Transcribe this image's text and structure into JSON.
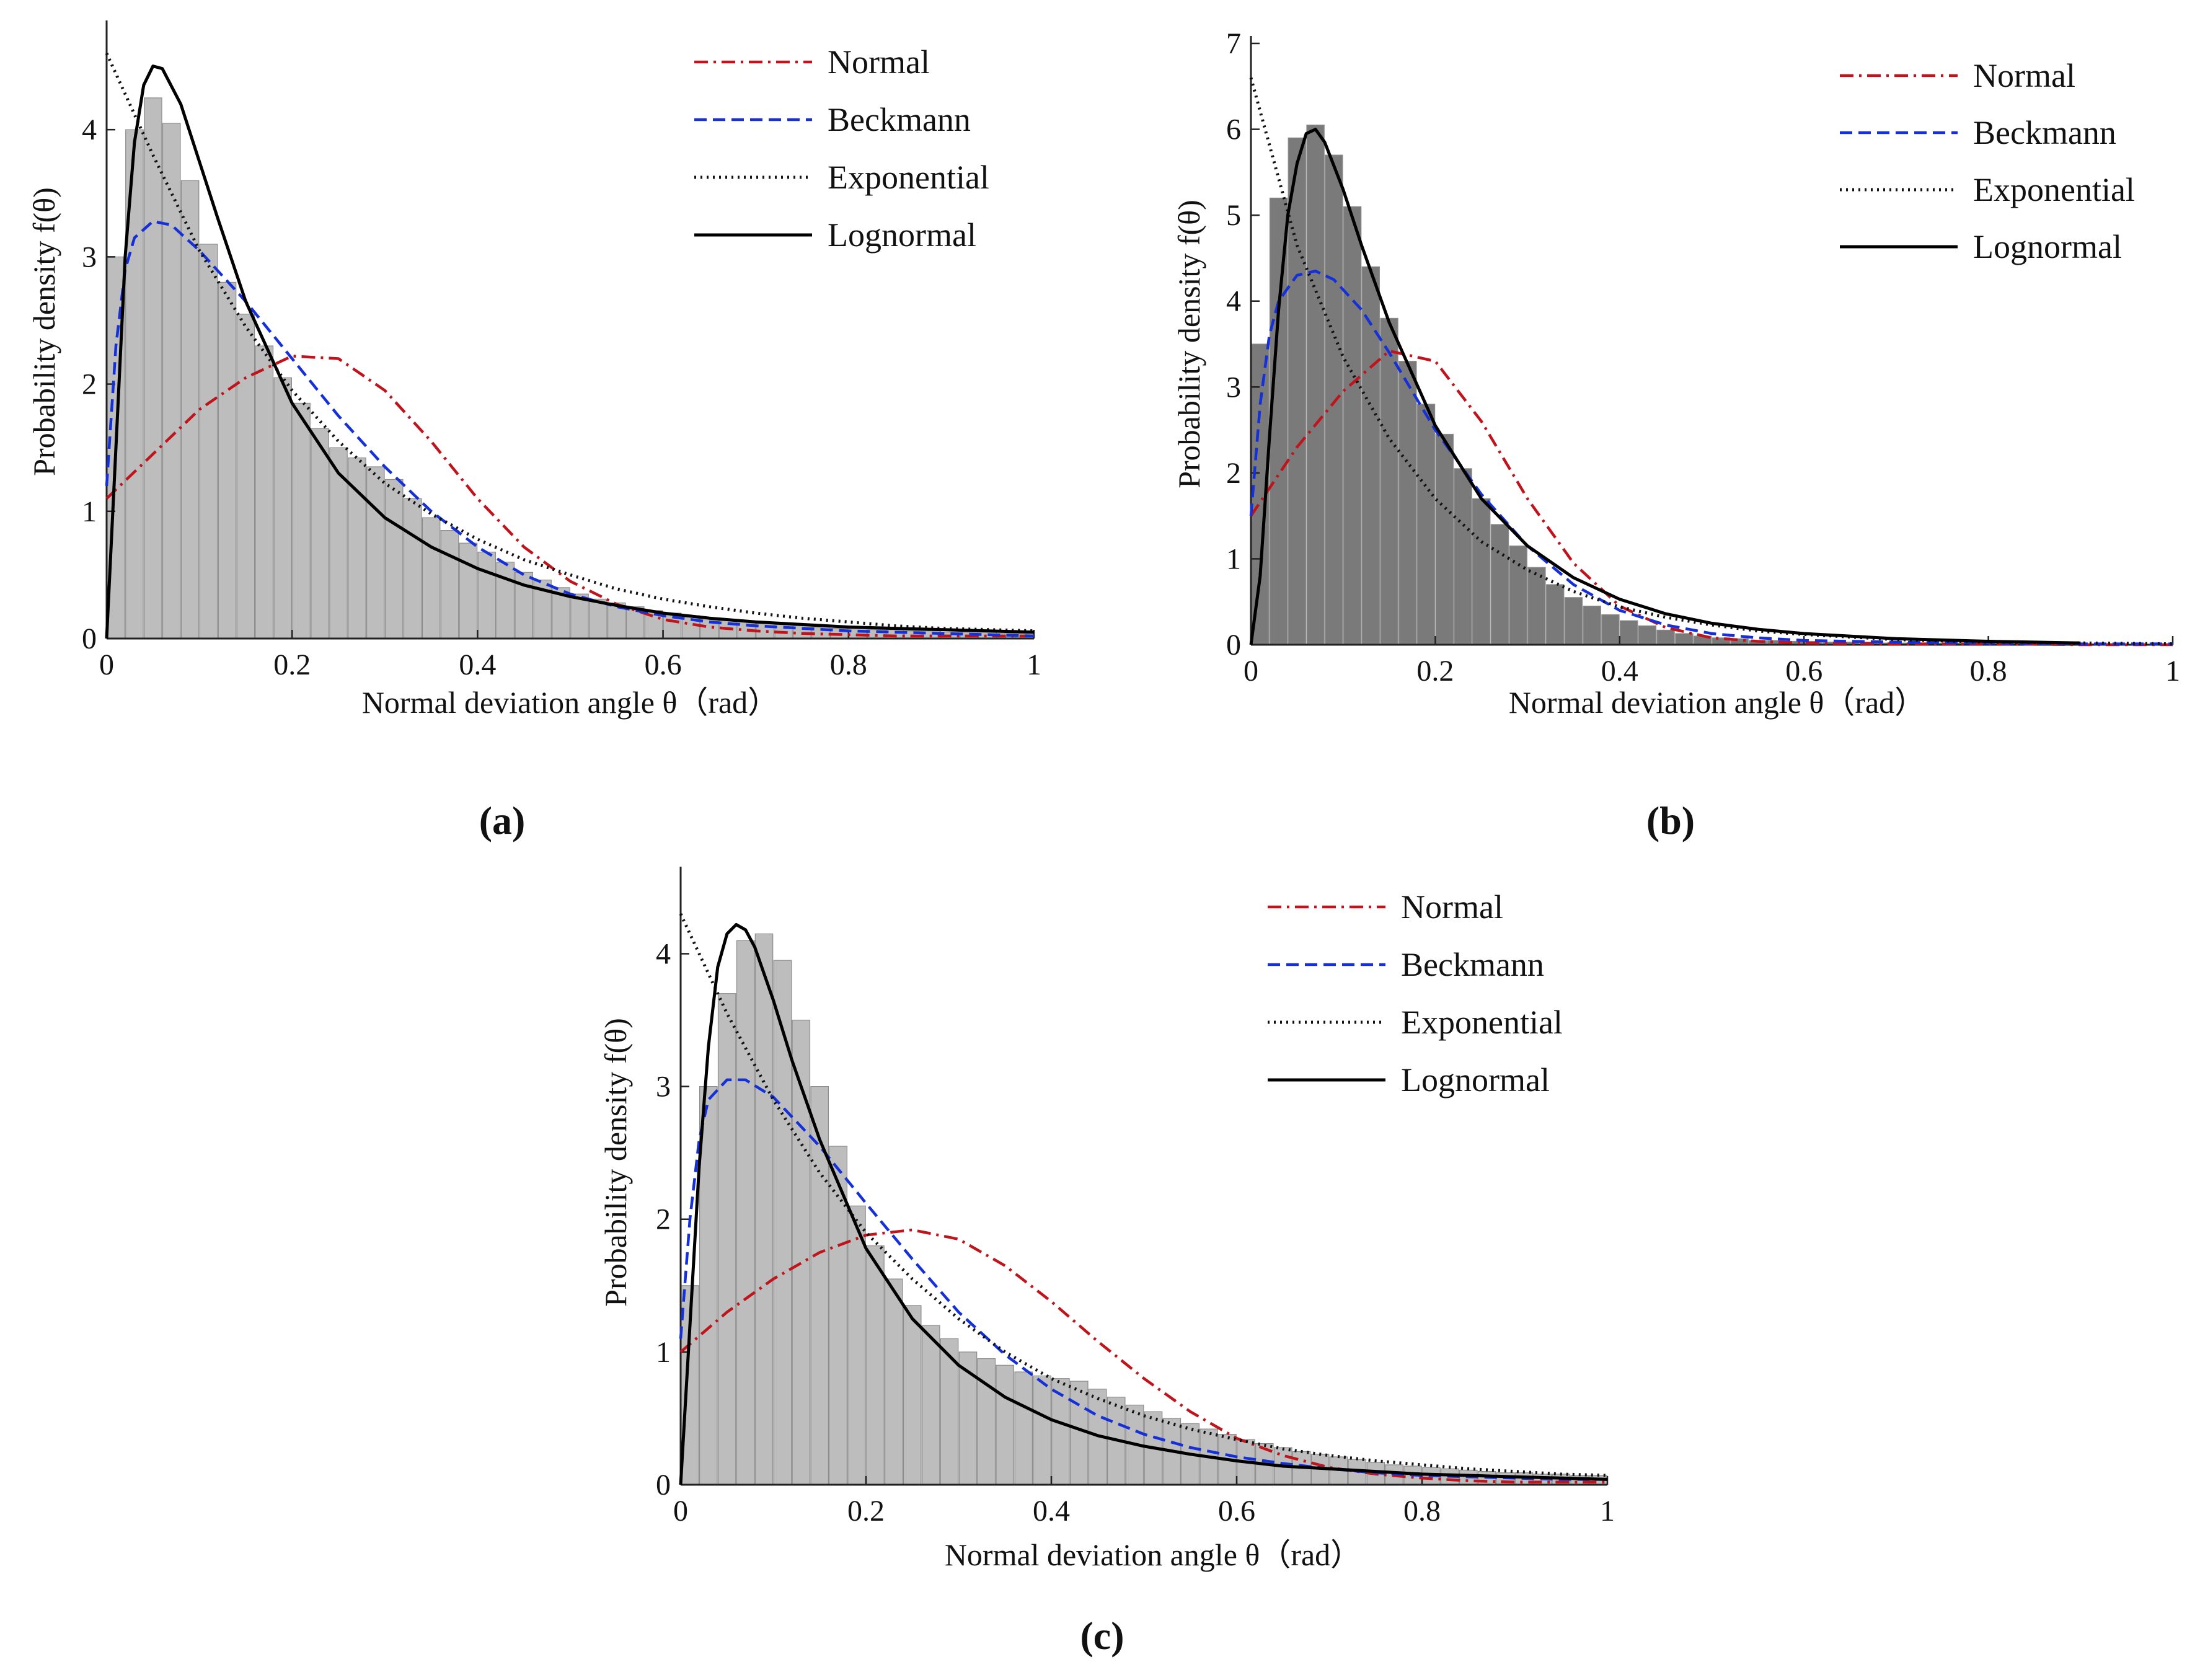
{
  "figure_description_free": true,
  "colors": {
    "normal": "#c0141c",
    "beckmann": "#1530d8",
    "exponential": "#111111",
    "lognormal": "#000000",
    "hist_light": "#bdbdbd",
    "hist_dark": "#7a7a7a"
  },
  "chart_data": [
    {
      "id": "a",
      "type": "line",
      "caption": "(a)",
      "caption_letter": "a",
      "xlabel": "Normal deviation angle θ（rad）",
      "ylabel": "Probability density f(θ)",
      "xlim": [
        0,
        1
      ],
      "ylim": [
        0,
        4.8
      ],
      "xticks": [
        "0",
        "0.2",
        "0.4",
        "0.6",
        "0.8",
        "1"
      ],
      "yticks": [
        "0",
        "1",
        "2",
        "3",
        "4"
      ],
      "legend": [
        "Normal",
        "Beckmann",
        "Exponential",
        "Lognormal"
      ],
      "legend_position": "top-right",
      "histogram": {
        "x": [
          0.01,
          0.03,
          0.05,
          0.07,
          0.09,
          0.11,
          0.13,
          0.15,
          0.17,
          0.19,
          0.21,
          0.23,
          0.25,
          0.27,
          0.29,
          0.31,
          0.33,
          0.35,
          0.37,
          0.39,
          0.41,
          0.43,
          0.45,
          0.47,
          0.49,
          0.51,
          0.53,
          0.55,
          0.57,
          0.59,
          0.61,
          0.63,
          0.65,
          0.67,
          0.69,
          0.71,
          0.73,
          0.75,
          0.77,
          0.79,
          0.81,
          0.83,
          0.85,
          0.87,
          0.89,
          0.91,
          0.93,
          0.95,
          0.97,
          0.99
        ],
        "values": [
          3.0,
          4.0,
          4.25,
          4.05,
          3.6,
          3.1,
          2.8,
          2.55,
          2.3,
          2.05,
          1.85,
          1.65,
          1.5,
          1.42,
          1.35,
          1.25,
          1.1,
          0.95,
          0.85,
          0.75,
          0.68,
          0.6,
          0.52,
          0.46,
          0.4,
          0.35,
          0.31,
          0.28,
          0.25,
          0.22,
          0.2,
          0.18,
          0.16,
          0.15,
          0.13,
          0.12,
          0.11,
          0.1,
          0.09,
          0.08,
          0.08,
          0.07,
          0.07,
          0.06,
          0.06,
          0.05,
          0.05,
          0.05,
          0.04,
          0.04
        ]
      },
      "series": [
        {
          "name": "Normal",
          "x": [
            0,
            0.05,
            0.1,
            0.15,
            0.2,
            0.25,
            0.3,
            0.35,
            0.4,
            0.45,
            0.5,
            0.55,
            0.6,
            0.65,
            0.7,
            0.75,
            0.8,
            0.85,
            0.9,
            0.95,
            1.0
          ],
          "values": [
            1.1,
            1.45,
            1.8,
            2.05,
            2.22,
            2.2,
            1.95,
            1.55,
            1.1,
            0.72,
            0.45,
            0.27,
            0.15,
            0.09,
            0.06,
            0.04,
            0.03,
            0.02,
            0.02,
            0.02,
            0.02
          ]
        },
        {
          "name": "Beckmann",
          "x": [
            0,
            0.01,
            0.02,
            0.03,
            0.05,
            0.07,
            0.1,
            0.15,
            0.2,
            0.25,
            0.3,
            0.35,
            0.4,
            0.45,
            0.5,
            0.55,
            0.6,
            0.65,
            0.7,
            0.75,
            0.8,
            0.85,
            0.9,
            0.95,
            1.0
          ],
          "values": [
            1.2,
            2.3,
            2.9,
            3.15,
            3.28,
            3.25,
            3.05,
            2.65,
            2.2,
            1.75,
            1.35,
            1.0,
            0.72,
            0.5,
            0.35,
            0.25,
            0.18,
            0.13,
            0.1,
            0.08,
            0.06,
            0.05,
            0.04,
            0.03,
            0.02
          ]
        },
        {
          "name": "Exponential",
          "x": [
            0,
            0.05,
            0.1,
            0.15,
            0.2,
            0.25,
            0.3,
            0.35,
            0.4,
            0.45,
            0.5,
            0.55,
            0.6,
            0.65,
            0.7,
            0.75,
            0.8,
            0.85,
            0.9,
            0.95,
            1.0
          ],
          "values": [
            4.6,
            3.8,
            3.05,
            2.45,
            1.95,
            1.55,
            1.22,
            0.98,
            0.78,
            0.62,
            0.5,
            0.39,
            0.31,
            0.25,
            0.2,
            0.16,
            0.13,
            0.1,
            0.08,
            0.07,
            0.06
          ]
        },
        {
          "name": "Lognormal",
          "x": [
            0,
            0.01,
            0.02,
            0.03,
            0.04,
            0.05,
            0.06,
            0.08,
            0.1,
            0.12,
            0.15,
            0.2,
            0.25,
            0.3,
            0.35,
            0.4,
            0.45,
            0.5,
            0.55,
            0.6,
            0.65,
            0.7,
            0.75,
            0.8,
            0.85,
            0.9,
            0.95,
            1.0
          ],
          "values": [
            0,
            1.5,
            3.0,
            3.9,
            4.35,
            4.5,
            4.48,
            4.2,
            3.75,
            3.3,
            2.65,
            1.85,
            1.3,
            0.95,
            0.72,
            0.55,
            0.42,
            0.33,
            0.26,
            0.2,
            0.16,
            0.13,
            0.11,
            0.09,
            0.08,
            0.07,
            0.06,
            0.05
          ]
        }
      ]
    },
    {
      "id": "b",
      "type": "line",
      "caption": "(b)",
      "caption_letter": "b",
      "xlabel": "Normal deviation angle θ（rad）",
      "ylabel": "Probability density f(θ)",
      "xlim": [
        0,
        1
      ],
      "ylim": [
        0,
        7
      ],
      "xticks": [
        "0",
        "0.2",
        "0.4",
        "0.6",
        "0.8",
        "1"
      ],
      "yticks": [
        "0",
        "1",
        "2",
        "3",
        "4",
        "5",
        "6",
        "7"
      ],
      "legend": [
        "Normal",
        "Beckmann",
        "Exponential",
        "Lognormal"
      ],
      "legend_position": "top-right",
      "histogram": {
        "x": [
          0.01,
          0.03,
          0.05,
          0.07,
          0.09,
          0.11,
          0.13,
          0.15,
          0.17,
          0.19,
          0.21,
          0.23,
          0.25,
          0.27,
          0.29,
          0.31,
          0.33,
          0.35,
          0.37,
          0.39,
          0.41,
          0.43,
          0.45,
          0.47,
          0.49,
          0.51,
          0.53,
          0.55,
          0.57,
          0.59,
          0.61,
          0.63,
          0.65,
          0.67,
          0.69,
          0.71,
          0.73,
          0.75,
          0.77,
          0.79,
          0.81,
          0.83,
          0.85,
          0.87,
          0.89,
          0.91
        ],
        "values": [
          3.5,
          5.2,
          5.9,
          6.05,
          5.7,
          5.1,
          4.4,
          3.8,
          3.3,
          2.8,
          2.45,
          2.05,
          1.7,
          1.4,
          1.15,
          0.9,
          0.7,
          0.55,
          0.45,
          0.35,
          0.28,
          0.22,
          0.17,
          0.13,
          0.1,
          0.08,
          0.07,
          0.05,
          0.05,
          0.04,
          0.04,
          0.03,
          0.03,
          0.03,
          0.02,
          0.02,
          0.02,
          0.02,
          0.02,
          0.02,
          0.02,
          0.01,
          0.01,
          0.01,
          0.01,
          0.01
        ]
      },
      "series": [
        {
          "name": "Normal",
          "x": [
            0,
            0.05,
            0.1,
            0.15,
            0.2,
            0.25,
            0.3,
            0.35,
            0.4,
            0.45,
            0.5,
            0.55,
            0.6,
            0.7,
            0.8,
            0.9,
            1.0
          ],
          "values": [
            1.5,
            2.3,
            2.95,
            3.42,
            3.3,
            2.6,
            1.7,
            0.95,
            0.45,
            0.2,
            0.08,
            0.04,
            0.02,
            0.01,
            0.01,
            0.0,
            0.0
          ]
        },
        {
          "name": "Beckmann",
          "x": [
            0,
            0.01,
            0.02,
            0.03,
            0.05,
            0.07,
            0.09,
            0.12,
            0.15,
            0.2,
            0.25,
            0.3,
            0.35,
            0.4,
            0.45,
            0.5,
            0.55,
            0.6,
            0.7,
            0.8,
            0.9,
            1.0
          ],
          "values": [
            1.5,
            2.8,
            3.6,
            4.0,
            4.3,
            4.35,
            4.25,
            3.9,
            3.4,
            2.5,
            1.75,
            1.15,
            0.7,
            0.4,
            0.23,
            0.13,
            0.08,
            0.05,
            0.03,
            0.02,
            0.01,
            0.01
          ]
        },
        {
          "name": "Exponential",
          "x": [
            0,
            0.05,
            0.1,
            0.15,
            0.2,
            0.25,
            0.3,
            0.35,
            0.4,
            0.45,
            0.5,
            0.55,
            0.6,
            0.7,
            0.8,
            0.9,
            1.0
          ],
          "values": [
            6.6,
            4.65,
            3.35,
            2.4,
            1.7,
            1.2,
            0.87,
            0.62,
            0.44,
            0.32,
            0.23,
            0.16,
            0.12,
            0.06,
            0.03,
            0.02,
            0.01
          ]
        },
        {
          "name": "Lognormal",
          "x": [
            0,
            0.01,
            0.02,
            0.03,
            0.04,
            0.05,
            0.06,
            0.07,
            0.08,
            0.1,
            0.12,
            0.15,
            0.2,
            0.25,
            0.3,
            0.35,
            0.4,
            0.45,
            0.5,
            0.55,
            0.6,
            0.7,
            0.8,
            0.9
          ],
          "values": [
            0,
            0.8,
            2.4,
            3.9,
            5.0,
            5.6,
            5.95,
            6.0,
            5.85,
            5.3,
            4.65,
            3.75,
            2.55,
            1.7,
            1.15,
            0.78,
            0.53,
            0.36,
            0.25,
            0.18,
            0.13,
            0.07,
            0.04,
            0.02
          ]
        }
      ]
    },
    {
      "id": "c",
      "type": "line",
      "caption": "(c)",
      "caption_letter": "c",
      "xlabel": "Normal deviation angle θ（rad）",
      "ylabel": "Probability density f(θ)",
      "xlim": [
        0,
        1
      ],
      "ylim": [
        0,
        4.6
      ],
      "xticks": [
        "0",
        "0.2",
        "0.4",
        "0.6",
        "0.8",
        "1"
      ],
      "yticks": [
        "0",
        "1",
        "2",
        "3",
        "4"
      ],
      "legend": [
        "Normal",
        "Beckmann",
        "Exponential",
        "Lognormal"
      ],
      "legend_position": "top-right",
      "histogram": {
        "x": [
          0.01,
          0.03,
          0.05,
          0.07,
          0.09,
          0.11,
          0.13,
          0.15,
          0.17,
          0.19,
          0.21,
          0.23,
          0.25,
          0.27,
          0.29,
          0.31,
          0.33,
          0.35,
          0.37,
          0.39,
          0.41,
          0.43,
          0.45,
          0.47,
          0.49,
          0.51,
          0.53,
          0.55,
          0.57,
          0.59,
          0.61,
          0.63,
          0.65,
          0.67,
          0.69,
          0.71,
          0.73,
          0.75,
          0.77,
          0.79,
          0.81,
          0.83,
          0.85,
          0.87,
          0.89,
          0.91,
          0.93,
          0.95,
          0.97,
          0.99
        ],
        "values": [
          1.5,
          3.0,
          3.7,
          4.1,
          4.15,
          3.95,
          3.5,
          3.0,
          2.55,
          2.1,
          1.8,
          1.55,
          1.35,
          1.2,
          1.1,
          1.0,
          0.95,
          0.9,
          0.85,
          0.82,
          0.8,
          0.78,
          0.72,
          0.66,
          0.6,
          0.55,
          0.5,
          0.46,
          0.42,
          0.38,
          0.34,
          0.31,
          0.28,
          0.25,
          0.23,
          0.21,
          0.19,
          0.17,
          0.15,
          0.14,
          0.13,
          0.12,
          0.11,
          0.1,
          0.09,
          0.09,
          0.08,
          0.08,
          0.07,
          0.07
        ]
      },
      "series": [
        {
          "name": "Normal",
          "x": [
            0,
            0.05,
            0.1,
            0.15,
            0.2,
            0.25,
            0.3,
            0.35,
            0.4,
            0.45,
            0.5,
            0.55,
            0.6,
            0.65,
            0.7,
            0.75,
            0.8,
            0.85,
            0.9,
            0.95,
            1.0
          ],
          "values": [
            1.0,
            1.3,
            1.55,
            1.75,
            1.88,
            1.92,
            1.85,
            1.65,
            1.38,
            1.08,
            0.8,
            0.55,
            0.35,
            0.22,
            0.13,
            0.08,
            0.05,
            0.03,
            0.02,
            0.02,
            0.02
          ]
        },
        {
          "name": "Beckmann",
          "x": [
            0,
            0.01,
            0.02,
            0.03,
            0.05,
            0.07,
            0.1,
            0.15,
            0.2,
            0.25,
            0.3,
            0.35,
            0.4,
            0.45,
            0.5,
            0.55,
            0.6,
            0.65,
            0.7,
            0.75,
            0.8,
            0.85,
            0.9,
            0.95,
            1.0
          ],
          "values": [
            1.1,
            2.0,
            2.6,
            2.9,
            3.05,
            3.05,
            2.92,
            2.55,
            2.12,
            1.7,
            1.3,
            0.98,
            0.72,
            0.52,
            0.38,
            0.28,
            0.21,
            0.16,
            0.12,
            0.09,
            0.07,
            0.06,
            0.05,
            0.04,
            0.04
          ]
        },
        {
          "name": "Exponential",
          "x": [
            0,
            0.05,
            0.1,
            0.15,
            0.2,
            0.25,
            0.3,
            0.35,
            0.4,
            0.45,
            0.5,
            0.55,
            0.6,
            0.65,
            0.7,
            0.75,
            0.8,
            0.85,
            0.9,
            0.95,
            1.0
          ],
          "values": [
            4.3,
            3.55,
            2.9,
            2.35,
            1.9,
            1.55,
            1.25,
            1.0,
            0.8,
            0.65,
            0.52,
            0.42,
            0.34,
            0.27,
            0.22,
            0.18,
            0.15,
            0.12,
            0.1,
            0.08,
            0.07
          ]
        },
        {
          "name": "Lognormal",
          "x": [
            0,
            0.01,
            0.02,
            0.03,
            0.04,
            0.05,
            0.06,
            0.07,
            0.08,
            0.1,
            0.12,
            0.15,
            0.2,
            0.25,
            0.3,
            0.35,
            0.4,
            0.45,
            0.5,
            0.55,
            0.6,
            0.65,
            0.7,
            0.75,
            0.8,
            0.85,
            0.9,
            0.95,
            1.0
          ],
          "values": [
            0,
            1.2,
            2.4,
            3.3,
            3.9,
            4.15,
            4.22,
            4.18,
            4.05,
            3.65,
            3.2,
            2.6,
            1.78,
            1.25,
            0.9,
            0.66,
            0.49,
            0.37,
            0.29,
            0.23,
            0.18,
            0.14,
            0.12,
            0.1,
            0.08,
            0.07,
            0.06,
            0.05,
            0.04
          ]
        }
      ]
    }
  ]
}
